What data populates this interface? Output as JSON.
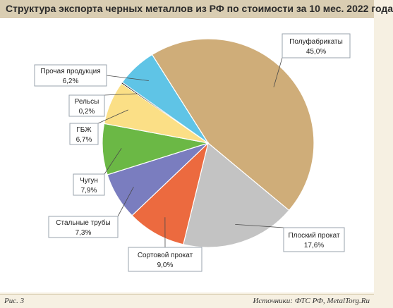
{
  "title": "Структура экспорта черных металлов из РФ по стоимости за 10 мес. 2022 года",
  "footer": {
    "figure_label": "Рис. 3",
    "source": "Источники: ФТС РФ, MetalTorg.Ru"
  },
  "chart_data": {
    "type": "pie",
    "title": "Структура экспорта черных металлов из РФ по стоимости за 10 мес. 2022 года",
    "start_angle_deg": -122,
    "direction": "clockwise",
    "legend": "none",
    "slices": [
      {
        "name": "Полуфабрикаты",
        "value": 45.0,
        "label": "45,0%",
        "color": "#cfad79"
      },
      {
        "name": "Плоский прокат",
        "value": 17.6,
        "label": "17,6%",
        "color": "#c3c3c3"
      },
      {
        "name": "Сортовой прокат",
        "value": 9.0,
        "label": "9,0%",
        "color": "#ec6a3f"
      },
      {
        "name": "Стальные трубы",
        "value": 7.3,
        "label": "7,3%",
        "color": "#7a7dbf"
      },
      {
        "name": "Чугун",
        "value": 7.9,
        "label": "7,9%",
        "color": "#6bb845"
      },
      {
        "name": "ГБЖ",
        "value": 6.7,
        "label": "6,7%",
        "color": "#fbdf86"
      },
      {
        "name": "Рельсы",
        "value": 0.2,
        "label": "0,2%",
        "color": "#1a1a1a"
      },
      {
        "name": "Прочая продукция",
        "value": 6.2,
        "label": "6,2%",
        "color": "#5fc4e6"
      }
    ]
  }
}
